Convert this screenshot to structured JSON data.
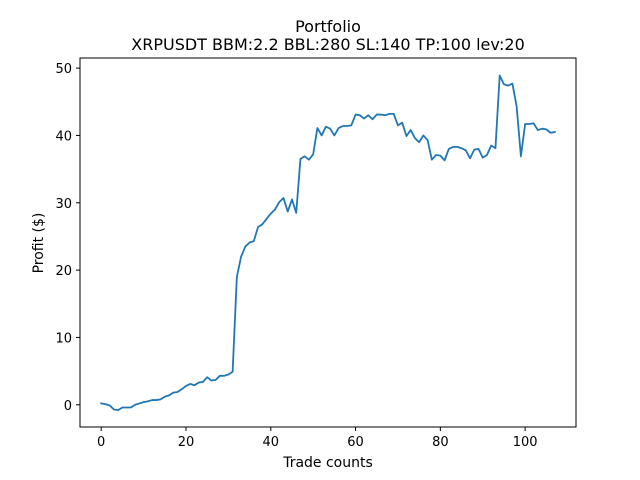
{
  "chart_data": {
    "type": "line",
    "title": "Portfolio",
    "subtitle": "XRPUSDT BBM:2.2 BBL:280 SL:140 TP:100 lev:20",
    "xlabel": "Trade counts",
    "ylabel": "Profit ($)",
    "xlim": [
      -5,
      112
    ],
    "ylim": [
      -3.3,
      51.5
    ],
    "xticks": [
      0,
      20,
      40,
      60,
      80,
      100
    ],
    "yticks": [
      0,
      10,
      20,
      30,
      40,
      50
    ],
    "grid": false,
    "series": [
      {
        "color": "#1f77b4",
        "x": [
          0,
          1,
          2,
          3,
          4,
          5,
          6,
          7,
          8,
          9,
          10,
          11,
          12,
          13,
          14,
          15,
          16,
          17,
          18,
          19,
          20,
          21,
          22,
          23,
          24,
          25,
          26,
          27,
          28,
          29,
          30,
          31,
          32,
          33,
          34,
          35,
          36,
          37,
          38,
          39,
          40,
          41,
          42,
          43,
          44,
          45,
          46,
          47,
          48,
          49,
          50,
          51,
          52,
          53,
          54,
          55,
          56,
          57,
          58,
          59,
          60,
          61,
          62,
          63,
          64,
          65,
          66,
          67,
          68,
          69,
          70,
          71,
          72,
          73,
          74,
          75,
          76,
          77,
          78,
          79,
          80,
          81,
          82,
          83,
          84,
          85,
          86,
          87,
          88,
          89,
          90,
          91,
          92,
          93,
          94,
          95,
          96,
          97,
          98,
          99,
          100,
          101,
          102,
          103,
          104,
          105,
          106,
          107
        ],
        "values": [
          0.2,
          0.1,
          -0.1,
          -0.7,
          -0.8,
          -0.4,
          -0.4,
          -0.4,
          0,
          0.2,
          0.4,
          0.5,
          0.7,
          0.7,
          0.8,
          1.2,
          1.4,
          1.8,
          1.9,
          2.3,
          2.8,
          3.1,
          2.9,
          3.3,
          3.4,
          4.1,
          3.6,
          3.7,
          4.3,
          4.3,
          4.5,
          4.9,
          19,
          22,
          23.5,
          24.1,
          24.3,
          26.4,
          26.8,
          27.6,
          28.4,
          29,
          30.1,
          30.7,
          28.7,
          30.5,
          28.5,
          36.5,
          36.9,
          36.4,
          37.2,
          41.1,
          40,
          41.3,
          41,
          40,
          41.1,
          41.4,
          41.4,
          41.5,
          43.1,
          43,
          42.5,
          43,
          42.4,
          43.1,
          43.1,
          43,
          43.2,
          43.2,
          41.5,
          41.9,
          39.9,
          40.8,
          39.6,
          39,
          40,
          39.3,
          36.4,
          37.1,
          37,
          36.3,
          38,
          38.3,
          38.3,
          38.1,
          37.8,
          36.6,
          37.9,
          38,
          36.7,
          37.1,
          38.5,
          38.1,
          48.9,
          47.6,
          47.4,
          47.7,
          44.3,
          36.9,
          41.7,
          41.7,
          41.8,
          40.8,
          41,
          40.9,
          40.4,
          40.5
        ]
      }
    ]
  }
}
